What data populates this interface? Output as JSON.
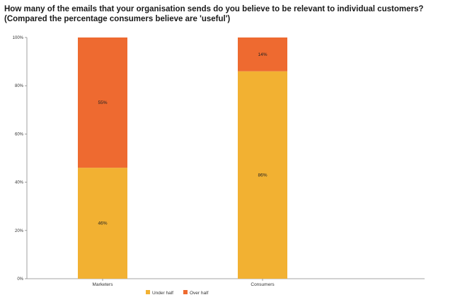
{
  "title_line1": "How many of the emails that your organisation sends do you believe to be relevant to individual customers?",
  "title_line2": "(Compared the percentage consumers believe are 'useful')",
  "chart_data": {
    "type": "bar",
    "stacked": true,
    "categories": [
      "Marketers",
      "Consumers"
    ],
    "series": [
      {
        "name": "Under half",
        "values": [
          46,
          86
        ],
        "labels": [
          "46%",
          "86%"
        ],
        "color": "#F2B132"
      },
      {
        "name": "Over half",
        "values": [
          55,
          14
        ],
        "labels": [
          "55%",
          "14%"
        ],
        "color": "#EE6A30"
      }
    ],
    "ylim": [
      0,
      100
    ],
    "yticks": [
      "0%",
      "20%",
      "40%",
      "60%",
      "80%",
      "100%"
    ],
    "legend_position": "bottom"
  }
}
